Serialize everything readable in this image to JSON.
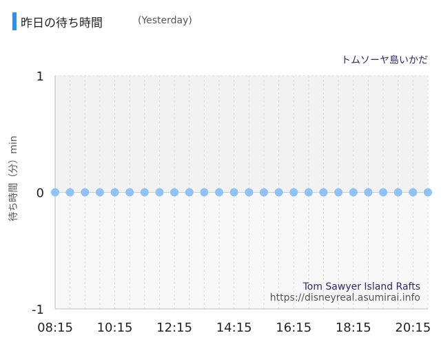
{
  "header": {
    "title": "昨日の待ち時間",
    "subtitle": "(Yesterday)",
    "accent_color": "#2e8ff0"
  },
  "chart_data": {
    "type": "line",
    "attraction_name": "トムソーヤ島いかだ",
    "watermark_name": "Tom Sawyer Island Rafts",
    "watermark_url": "https://disneyreal.asumirai.info",
    "ylabel": "待ち時間（分）min",
    "ylim": [
      -1,
      1
    ],
    "yticks": [
      "1",
      "0",
      "-1"
    ],
    "xtick_labels": [
      "08:15",
      "10:15",
      "12:15",
      "14:15",
      "16:15",
      "18:15",
      "20:15"
    ],
    "x": [
      "08:15",
      "08:45",
      "09:15",
      "09:45",
      "10:15",
      "10:45",
      "11:15",
      "11:45",
      "12:15",
      "12:45",
      "13:15",
      "13:45",
      "14:15",
      "14:45",
      "15:15",
      "15:45",
      "16:15",
      "16:45",
      "17:15",
      "17:45",
      "18:15",
      "18:45",
      "19:15",
      "19:45",
      "20:15",
      "20:45"
    ],
    "series": [
      {
        "values": [
          0,
          0,
          0,
          0,
          0,
          0,
          0,
          0,
          0,
          0,
          0,
          0,
          0,
          0,
          0,
          0,
          0,
          0,
          0,
          0,
          0,
          0,
          0,
          0,
          0,
          0
        ]
      }
    ],
    "marker_color": "#8fc3f5",
    "upper_band_color": "#f2f2f2",
    "lower_band_color": "#f8f8f8",
    "grid": true
  }
}
